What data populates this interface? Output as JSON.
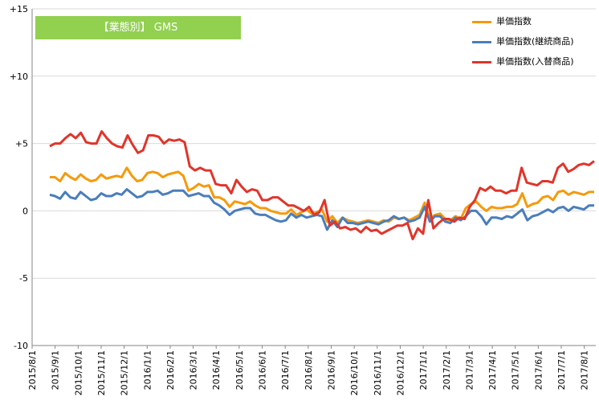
{
  "chart_data": {
    "type": "line",
    "title": "【業態別】 GMS",
    "ylim": [
      -10,
      15
    ],
    "y_ticks": [
      "+15",
      "+10",
      "+5",
      "0",
      "-5",
      "-10"
    ],
    "x_tick_labels": [
      "2015/8/1",
      "2015/9/1",
      "2015/10/1",
      "2015/11/1",
      "2015/12/1",
      "2016/1/1",
      "2016/2/1",
      "2016/3/1",
      "2016/4/1",
      "2016/5/1",
      "2016/6/1",
      "2016/7/1",
      "2016/8/1",
      "2016/9/1",
      "2016/10/1",
      "2016/11/1",
      "2016/12/1",
      "2017/1/1",
      "2017/2/1",
      "2017/3/1",
      "2017/4/1",
      "2017/5/1",
      "2017/6/1",
      "2017/7/1",
      "2017/8/1"
    ],
    "grid": true,
    "legend_position": "top-right",
    "series": [
      {
        "name": "単価指数",
        "color": "#f59a0c",
        "values": [
          2.5,
          2.5,
          2.2,
          2.8,
          2.5,
          2.3,
          2.7,
          2.4,
          2.2,
          2.3,
          2.7,
          2.4,
          2.5,
          2.6,
          2.5,
          3.2,
          2.6,
          2.2,
          2.3,
          2.8,
          2.9,
          2.8,
          2.5,
          2.7,
          2.8,
          2.9,
          2.6,
          1.5,
          1.7,
          2.0,
          1.8,
          1.9,
          1.0,
          1.0,
          0.8,
          0.3,
          0.7,
          0.6,
          0.5,
          0.7,
          0.4,
          0.2,
          0.2,
          0.0,
          -0.1,
          -0.2,
          -0.2,
          0.1,
          -0.3,
          -0.1,
          0.1,
          -0.2,
          -0.1,
          0.1,
          -0.8,
          -0.4,
          -0.9,
          -0.5,
          -0.7,
          -0.8,
          -0.9,
          -0.8,
          -0.7,
          -0.8,
          -0.9,
          -0.7,
          -0.8,
          -0.5,
          -0.6,
          -0.5,
          -0.7,
          -0.5,
          -0.3,
          0.6,
          -0.6,
          -0.3,
          -0.2,
          -0.6,
          -0.7,
          -0.4,
          -0.6,
          0.2,
          0.5,
          0.7,
          0.3,
          0.0,
          0.3,
          0.2,
          0.2,
          0.3,
          0.3,
          0.5,
          1.3,
          0.3,
          0.5,
          0.6,
          1.0,
          1.1,
          0.8,
          1.4,
          1.5,
          1.2,
          1.4,
          1.3,
          1.2,
          1.4,
          1.4
        ]
      },
      {
        "name": "単価指数(継続商品)",
        "color": "#4a7ebb",
        "values": [
          1.2,
          1.1,
          0.9,
          1.4,
          1.0,
          0.9,
          1.4,
          1.1,
          0.8,
          0.9,
          1.3,
          1.1,
          1.1,
          1.3,
          1.2,
          1.6,
          1.3,
          1.0,
          1.1,
          1.4,
          1.4,
          1.5,
          1.2,
          1.3,
          1.5,
          1.5,
          1.5,
          1.1,
          1.2,
          1.3,
          1.1,
          1.1,
          0.6,
          0.4,
          0.1,
          -0.3,
          0.0,
          0.1,
          0.2,
          0.2,
          -0.2,
          -0.3,
          -0.3,
          -0.5,
          -0.7,
          -0.8,
          -0.7,
          -0.2,
          -0.5,
          -0.3,
          -0.5,
          -0.4,
          -0.3,
          -0.4,
          -1.4,
          -0.7,
          -1.2,
          -0.5,
          -0.9,
          -0.9,
          -1.0,
          -0.9,
          -0.8,
          -0.9,
          -1.0,
          -0.8,
          -0.7,
          -0.4,
          -0.6,
          -0.5,
          -0.8,
          -0.7,
          -0.5,
          0.3,
          -0.8,
          -0.4,
          -0.4,
          -0.8,
          -0.9,
          -0.5,
          -0.7,
          -0.4,
          0.0,
          0.0,
          -0.4,
          -1.0,
          -0.5,
          -0.5,
          -0.6,
          -0.4,
          -0.5,
          -0.2,
          0.1,
          -0.7,
          -0.4,
          -0.3,
          -0.1,
          0.1,
          -0.1,
          0.2,
          0.3,
          0.0,
          0.3,
          0.2,
          0.1,
          0.4,
          0.4
        ]
      },
      {
        "name": "単価指数(入替商品)",
        "color": "#e0352b",
        "values": [
          4.8,
          5.0,
          5.0,
          5.4,
          5.7,
          5.4,
          5.8,
          5.1,
          5.0,
          5.0,
          5.9,
          5.4,
          5.0,
          4.8,
          4.7,
          5.6,
          4.9,
          4.3,
          4.5,
          5.6,
          5.6,
          5.5,
          5.0,
          5.3,
          5.2,
          5.3,
          5.1,
          3.3,
          3.0,
          3.2,
          3.0,
          3.0,
          2.0,
          1.9,
          1.9,
          1.3,
          2.3,
          1.8,
          1.4,
          1.6,
          1.5,
          0.8,
          0.8,
          1.0,
          1.0,
          0.7,
          0.4,
          0.4,
          0.2,
          0.0,
          0.3,
          -0.3,
          -0.1,
          0.8,
          -1.1,
          -0.8,
          -1.3,
          -1.2,
          -1.4,
          -1.3,
          -1.6,
          -1.2,
          -1.5,
          -1.4,
          -1.7,
          -1.5,
          -1.3,
          -1.1,
          -1.1,
          -0.9,
          -2.1,
          -1.3,
          -1.7,
          0.8,
          -1.3,
          -0.9,
          -0.6,
          -0.6,
          -0.8,
          -0.5,
          -0.6,
          0.3,
          0.8,
          1.7,
          1.5,
          1.8,
          1.5,
          1.5,
          1.3,
          1.5,
          1.5,
          3.2,
          2.1,
          2.0,
          1.9,
          2.2,
          2.2,
          2.1,
          3.2,
          3.5,
          2.9,
          3.1,
          3.4,
          3.5,
          3.4,
          3.7
        ]
      }
    ]
  }
}
